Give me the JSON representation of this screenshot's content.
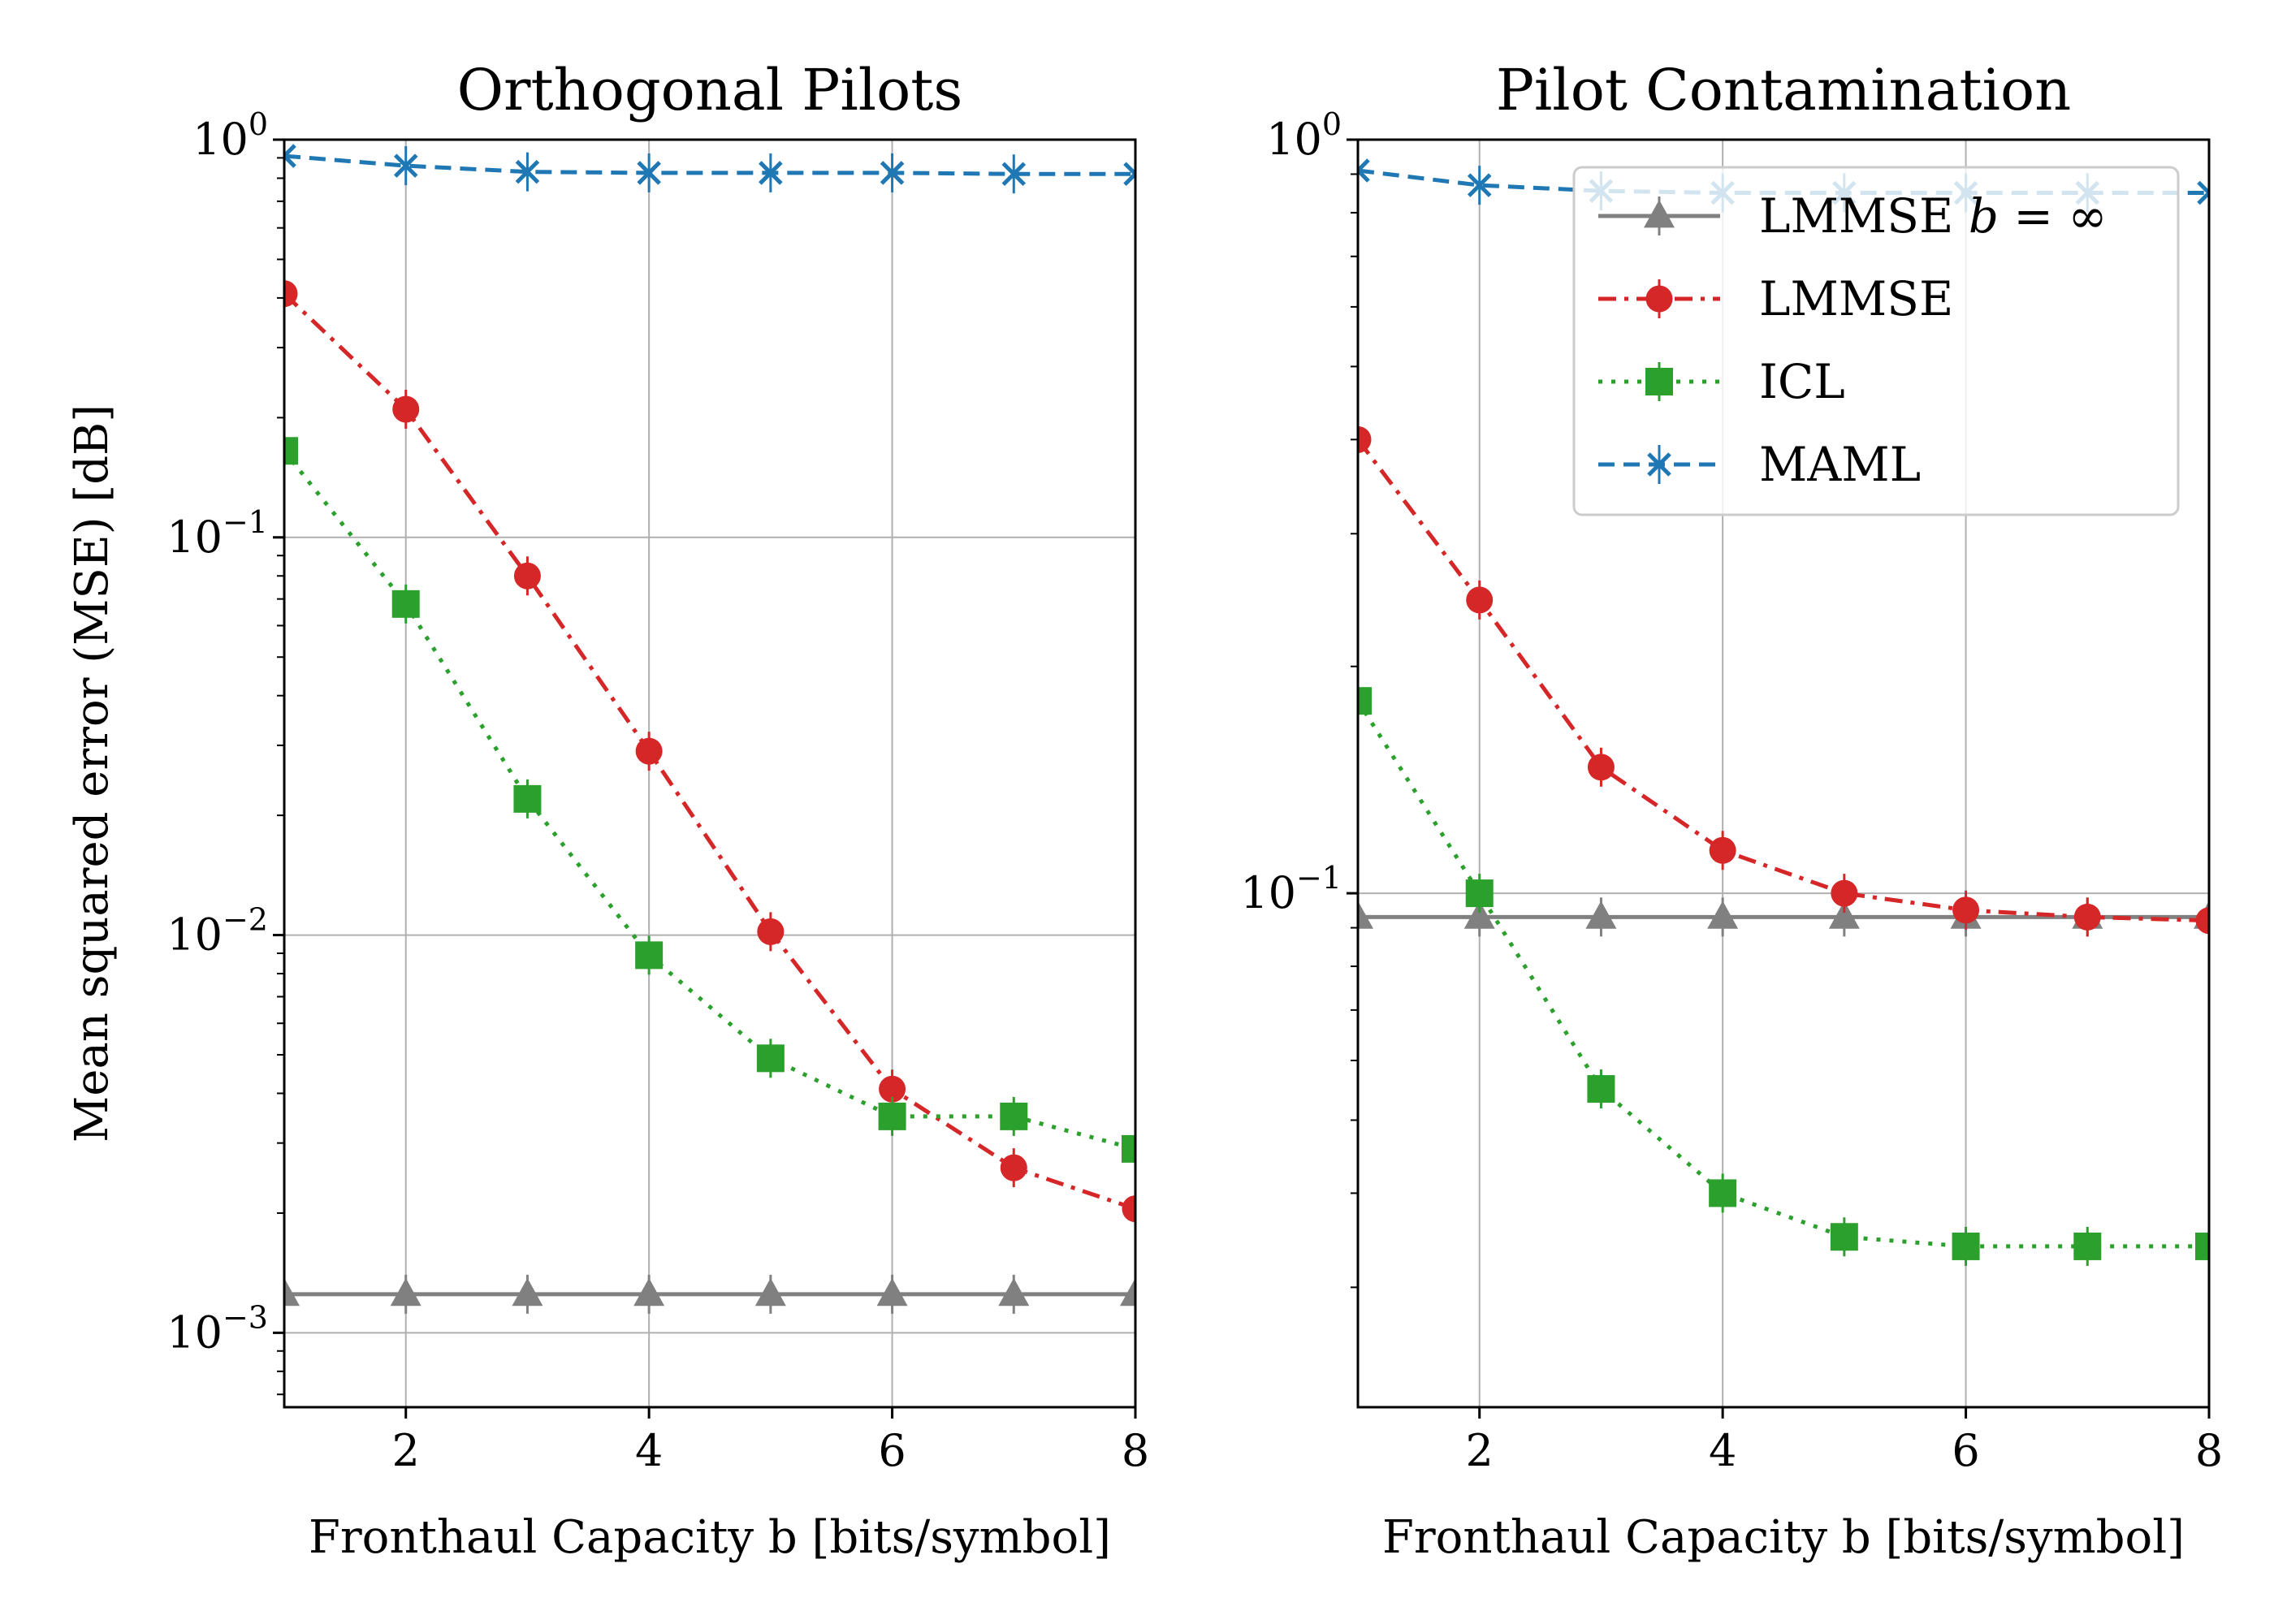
{
  "chart_data": [
    {
      "type": "line",
      "title": "Orthogonal Pilots",
      "xlabel": "Fronthaul Capacity b [bits/symbol]",
      "ylabel": "Mean squared error (MSE) [dB]",
      "xlim": [
        1,
        8
      ],
      "ylim": [
        0.00065,
        1
      ],
      "yscale": "log",
      "grid": true,
      "x_ticks": [
        2,
        4,
        6,
        8
      ],
      "y_ticks": [
        {
          "value": 1,
          "base": "10",
          "exp": "0"
        },
        {
          "value": 0.1,
          "base": "10",
          "exp": "−1"
        },
        {
          "value": 0.01,
          "base": "10",
          "exp": "−2"
        },
        {
          "value": 0.001,
          "base": "10",
          "exp": "−3"
        }
      ],
      "x": [
        1,
        2,
        3,
        4,
        5,
        6,
        7,
        8
      ],
      "series": [
        {
          "name": "LMMSE b = ∞",
          "color": "#808080",
          "marker": "triangle",
          "dash": "solid",
          "values": [
            0.00125,
            0.00125,
            0.00125,
            0.00125,
            0.00125,
            0.00125,
            0.00125,
            0.00125
          ]
        },
        {
          "name": "LMMSE",
          "color": "#d62728",
          "marker": "circle",
          "dash": "dashdot",
          "values": [
            0.41,
            0.21,
            0.08,
            0.029,
            0.0102,
            0.0041,
            0.0026,
            0.00205
          ]
        },
        {
          "name": "ICL",
          "color": "#2ca02c",
          "marker": "square",
          "dash": "dotted",
          "values": [
            0.165,
            0.068,
            0.022,
            0.0089,
            0.0049,
            0.0035,
            0.0035,
            0.0029
          ]
        },
        {
          "name": "MAML",
          "color": "#1f77b4",
          "marker": "x",
          "dash": "dashed",
          "values": [
            0.91,
            0.86,
            0.83,
            0.825,
            0.825,
            0.825,
            0.82,
            0.82
          ]
        }
      ]
    },
    {
      "type": "line",
      "title": "Pilot Contamination",
      "xlabel": "Fronthaul Capacity b [bits/symbol]",
      "ylabel": "",
      "xlim": [
        1,
        8
      ],
      "ylim": [
        0.0208,
        1
      ],
      "yscale": "log",
      "grid": true,
      "legend": "top-right",
      "x_ticks": [
        2,
        4,
        6,
        8
      ],
      "y_ticks": [
        {
          "value": 1,
          "base": "10",
          "exp": "0"
        },
        {
          "value": 0.1,
          "base": "10",
          "exp": "−1"
        }
      ],
      "x": [
        1,
        2,
        3,
        4,
        5,
        6,
        7,
        8
      ],
      "series": [
        {
          "name": "LMMSE b = ∞",
          "color": "#808080",
          "marker": "triangle",
          "dash": "solid",
          "values": [
            0.093,
            0.093,
            0.093,
            0.093,
            0.093,
            0.093,
            0.093,
            0.093
          ]
        },
        {
          "name": "LMMSE",
          "color": "#d62728",
          "marker": "circle",
          "dash": "dashdot",
          "values": [
            0.4,
            0.245,
            0.147,
            0.114,
            0.1,
            0.095,
            0.093,
            0.092
          ]
        },
        {
          "name": "ICL",
          "color": "#2ca02c",
          "marker": "square",
          "dash": "dotted",
          "values": [
            0.18,
            0.1,
            0.055,
            0.04,
            0.035,
            0.034,
            0.034,
            0.034
          ]
        },
        {
          "name": "MAML",
          "color": "#1f77b4",
          "marker": "x",
          "dash": "dashed",
          "values": [
            0.91,
            0.87,
            0.855,
            0.85,
            0.85,
            0.85,
            0.85,
            0.85
          ]
        }
      ]
    }
  ],
  "legend": {
    "entries": [
      {
        "label": "LMMSE ",
        "italic": "b",
        "suffix": " = ∞",
        "color": "#808080",
        "marker": "triangle",
        "dash": "solid"
      },
      {
        "label": "LMMSE",
        "italic": "",
        "suffix": "",
        "color": "#d62728",
        "marker": "circle",
        "dash": "dashdot"
      },
      {
        "label": "ICL",
        "italic": "",
        "suffix": "",
        "color": "#2ca02c",
        "marker": "square",
        "dash": "dotted"
      },
      {
        "label": "MAML",
        "italic": "",
        "suffix": "",
        "color": "#1f77b4",
        "marker": "x",
        "dash": "dashed"
      }
    ]
  }
}
